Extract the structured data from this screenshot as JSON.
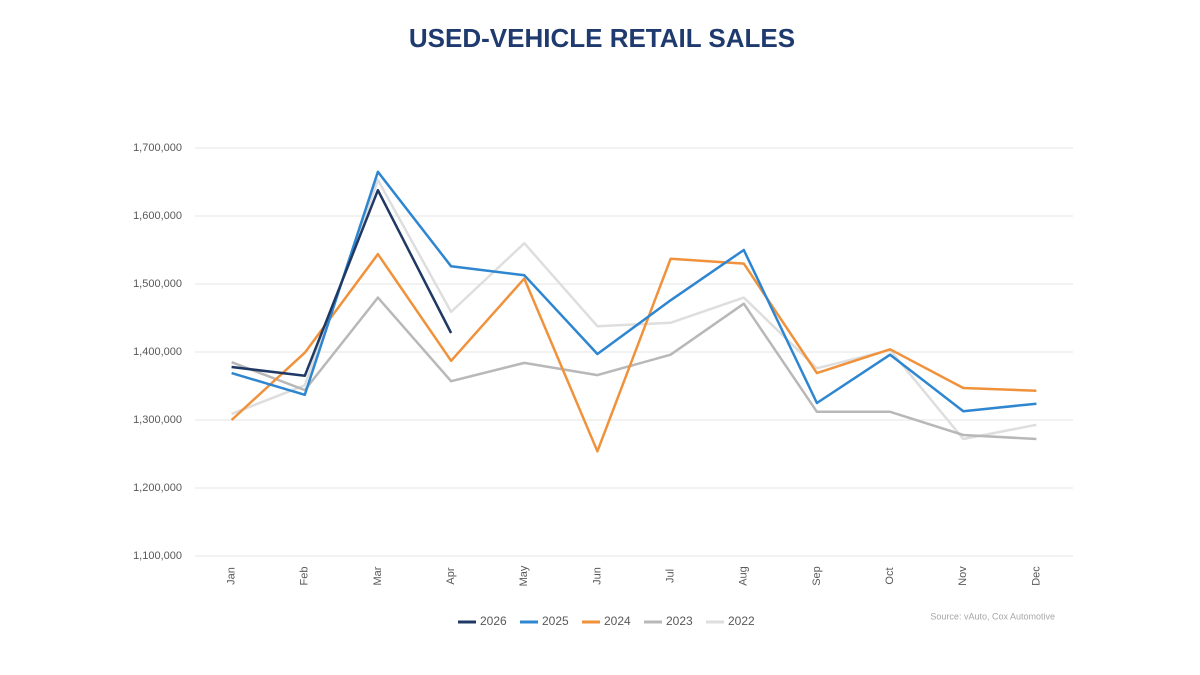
{
  "chart_data": {
    "type": "line",
    "title": "USED-VEHICLE RETAIL SALES",
    "source": "Source: vAuto, Cox Automotive",
    "categories": [
      "Jan",
      "Feb",
      "Mar",
      "Apr",
      "May",
      "Jun",
      "Jul",
      "Aug",
      "Sep",
      "Oct",
      "Nov",
      "Dec"
    ],
    "series": [
      {
        "name": "2026",
        "color": "#1f3864",
        "values": [
          1378000,
          1365000,
          1638000,
          1428000,
          null,
          null,
          null,
          null,
          null,
          null,
          null,
          null
        ]
      },
      {
        "name": "2025",
        "color": "#2e86d0",
        "values": [
          1369000,
          1337000,
          1665000,
          1526000,
          1513000,
          1397000,
          1476000,
          1550000,
          1325000,
          1396000,
          1313000,
          1324000
        ]
      },
      {
        "name": "2024",
        "color": "#f0923b",
        "values": [
          1300000,
          1399000,
          1544000,
          1387000,
          1508000,
          1254000,
          1537000,
          1530000,
          1369000,
          1404000,
          1347000,
          1343000
        ]
      },
      {
        "name": "2023",
        "color": "#b8b8b8",
        "values": [
          1385000,
          1344000,
          1480000,
          1357000,
          1384000,
          1366000,
          1396000,
          1471000,
          1312000,
          1312000,
          1278000,
          1272000
        ]
      },
      {
        "name": "2022",
        "color": "#dedede",
        "values": [
          1309000,
          1351000,
          1653000,
          1459000,
          1560000,
          1438000,
          1443000,
          1480000,
          1376000,
          1403000,
          1272000,
          1293000
        ]
      }
    ],
    "ylim": [
      1100000,
      1700000
    ],
    "yticks": [
      {
        "value": 1100000,
        "label": "1,100,000"
      },
      {
        "value": 1200000,
        "label": "1,200,000"
      },
      {
        "value": 1300000,
        "label": "1,300,000"
      },
      {
        "value": 1400000,
        "label": "1,400,000"
      },
      {
        "value": 1500000,
        "label": "1,500,000"
      },
      {
        "value": 1600000,
        "label": "1,600,000"
      },
      {
        "value": 1700000,
        "label": "1,700,000"
      }
    ],
    "grid": true,
    "legend": "bottom"
  }
}
